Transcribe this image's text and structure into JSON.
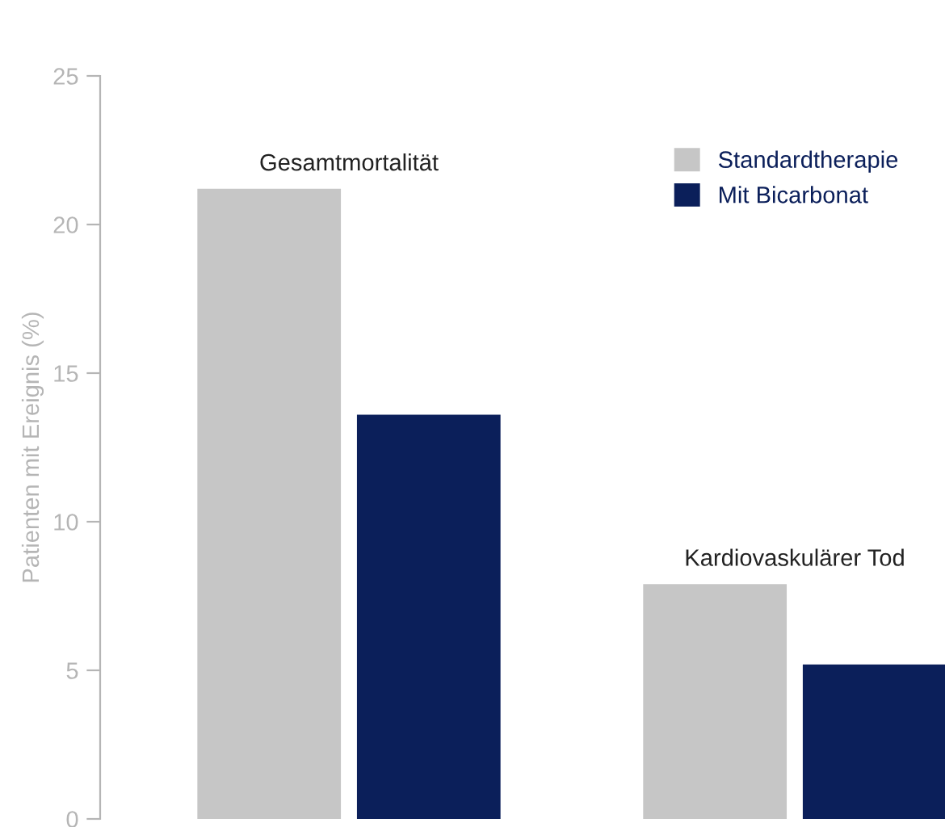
{
  "chart_data": {
    "type": "bar",
    "ylabel": "Patienten mit Ereignis (%)",
    "categories": [
      "Gesamtmortalität",
      "Kardiovaskulärer Tod"
    ],
    "series": [
      {
        "name": "Standardtherapie",
        "color": "#c6c6c6",
        "values": [
          21.2,
          7.9
        ]
      },
      {
        "name": "Mit Bicarbonat",
        "color": "#0b1f5a",
        "values": [
          13.6,
          5.2
        ]
      }
    ],
    "ylim": [
      0,
      25
    ],
    "yticks": [
      0,
      5,
      10,
      15,
      20,
      25
    ],
    "grid": false,
    "legend": "top right"
  }
}
